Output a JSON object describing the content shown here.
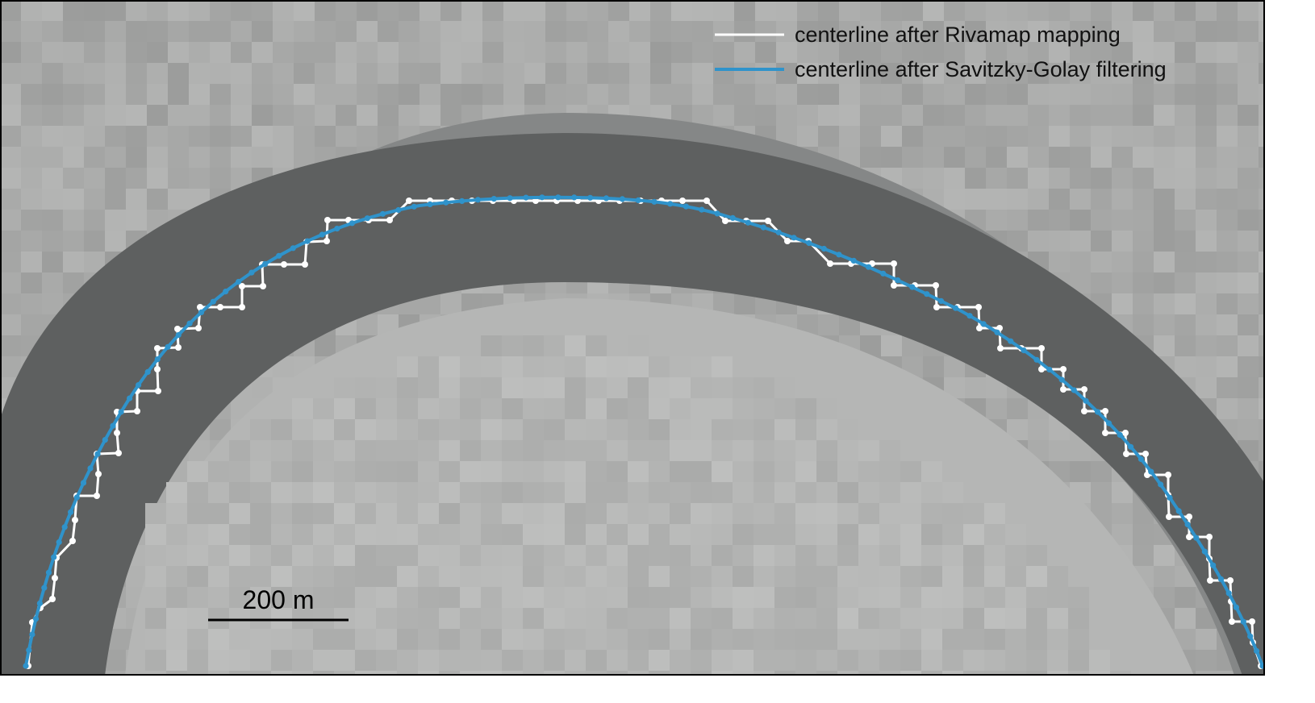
{
  "legend": {
    "rivamap_label": "centerline after Rivamap mapping",
    "savgol_label": "centerline after Savitzky-Golay filtering"
  },
  "scale_bar": {
    "label": "200 m",
    "length_m": 200
  },
  "colors": {
    "rivamap_line": "#ffffff",
    "savgol_line": "#2f93cb",
    "channel": "#5e6060",
    "land": "#a6a7a6",
    "point_bar": "#b5b6b5",
    "frame": "#000000"
  }
}
